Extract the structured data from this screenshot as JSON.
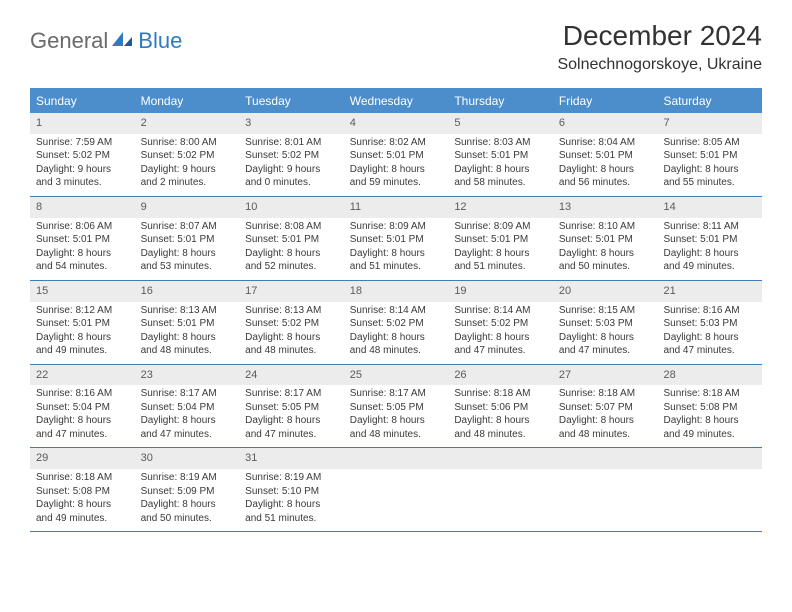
{
  "logo": {
    "text1": "General",
    "text2": "Blue"
  },
  "title": "December 2024",
  "location": "Solnechnogorskoye, Ukraine",
  "colors": {
    "header_bg": "#4b8ecb",
    "header_text": "#ffffff",
    "daynum_bg": "#ececec",
    "border": "#3f7db8",
    "logo_gray": "#6a6a6a",
    "logo_blue": "#2f7bbf"
  },
  "weekdays": [
    "Sunday",
    "Monday",
    "Tuesday",
    "Wednesday",
    "Thursday",
    "Friday",
    "Saturday"
  ],
  "weeks": [
    [
      {
        "n": "1",
        "sr": "7:59 AM",
        "ss": "5:02 PM",
        "dl": "9 hours and 3 minutes."
      },
      {
        "n": "2",
        "sr": "8:00 AM",
        "ss": "5:02 PM",
        "dl": "9 hours and 2 minutes."
      },
      {
        "n": "3",
        "sr": "8:01 AM",
        "ss": "5:02 PM",
        "dl": "9 hours and 0 minutes."
      },
      {
        "n": "4",
        "sr": "8:02 AM",
        "ss": "5:01 PM",
        "dl": "8 hours and 59 minutes."
      },
      {
        "n": "5",
        "sr": "8:03 AM",
        "ss": "5:01 PM",
        "dl": "8 hours and 58 minutes."
      },
      {
        "n": "6",
        "sr": "8:04 AM",
        "ss": "5:01 PM",
        "dl": "8 hours and 56 minutes."
      },
      {
        "n": "7",
        "sr": "8:05 AM",
        "ss": "5:01 PM",
        "dl": "8 hours and 55 minutes."
      }
    ],
    [
      {
        "n": "8",
        "sr": "8:06 AM",
        "ss": "5:01 PM",
        "dl": "8 hours and 54 minutes."
      },
      {
        "n": "9",
        "sr": "8:07 AM",
        "ss": "5:01 PM",
        "dl": "8 hours and 53 minutes."
      },
      {
        "n": "10",
        "sr": "8:08 AM",
        "ss": "5:01 PM",
        "dl": "8 hours and 52 minutes."
      },
      {
        "n": "11",
        "sr": "8:09 AM",
        "ss": "5:01 PM",
        "dl": "8 hours and 51 minutes."
      },
      {
        "n": "12",
        "sr": "8:09 AM",
        "ss": "5:01 PM",
        "dl": "8 hours and 51 minutes."
      },
      {
        "n": "13",
        "sr": "8:10 AM",
        "ss": "5:01 PM",
        "dl": "8 hours and 50 minutes."
      },
      {
        "n": "14",
        "sr": "8:11 AM",
        "ss": "5:01 PM",
        "dl": "8 hours and 49 minutes."
      }
    ],
    [
      {
        "n": "15",
        "sr": "8:12 AM",
        "ss": "5:01 PM",
        "dl": "8 hours and 49 minutes."
      },
      {
        "n": "16",
        "sr": "8:13 AM",
        "ss": "5:01 PM",
        "dl": "8 hours and 48 minutes."
      },
      {
        "n": "17",
        "sr": "8:13 AM",
        "ss": "5:02 PM",
        "dl": "8 hours and 48 minutes."
      },
      {
        "n": "18",
        "sr": "8:14 AM",
        "ss": "5:02 PM",
        "dl": "8 hours and 48 minutes."
      },
      {
        "n": "19",
        "sr": "8:14 AM",
        "ss": "5:02 PM",
        "dl": "8 hours and 47 minutes."
      },
      {
        "n": "20",
        "sr": "8:15 AM",
        "ss": "5:03 PM",
        "dl": "8 hours and 47 minutes."
      },
      {
        "n": "21",
        "sr": "8:16 AM",
        "ss": "5:03 PM",
        "dl": "8 hours and 47 minutes."
      }
    ],
    [
      {
        "n": "22",
        "sr": "8:16 AM",
        "ss": "5:04 PM",
        "dl": "8 hours and 47 minutes."
      },
      {
        "n": "23",
        "sr": "8:17 AM",
        "ss": "5:04 PM",
        "dl": "8 hours and 47 minutes."
      },
      {
        "n": "24",
        "sr": "8:17 AM",
        "ss": "5:05 PM",
        "dl": "8 hours and 47 minutes."
      },
      {
        "n": "25",
        "sr": "8:17 AM",
        "ss": "5:05 PM",
        "dl": "8 hours and 48 minutes."
      },
      {
        "n": "26",
        "sr": "8:18 AM",
        "ss": "5:06 PM",
        "dl": "8 hours and 48 minutes."
      },
      {
        "n": "27",
        "sr": "8:18 AM",
        "ss": "5:07 PM",
        "dl": "8 hours and 48 minutes."
      },
      {
        "n": "28",
        "sr": "8:18 AM",
        "ss": "5:08 PM",
        "dl": "8 hours and 49 minutes."
      }
    ],
    [
      {
        "n": "29",
        "sr": "8:18 AM",
        "ss": "5:08 PM",
        "dl": "8 hours and 49 minutes."
      },
      {
        "n": "30",
        "sr": "8:19 AM",
        "ss": "5:09 PM",
        "dl": "8 hours and 50 minutes."
      },
      {
        "n": "31",
        "sr": "8:19 AM",
        "ss": "5:10 PM",
        "dl": "8 hours and 51 minutes."
      },
      {
        "n": "",
        "sr": "",
        "ss": "",
        "dl": ""
      },
      {
        "n": "",
        "sr": "",
        "ss": "",
        "dl": ""
      },
      {
        "n": "",
        "sr": "",
        "ss": "",
        "dl": ""
      },
      {
        "n": "",
        "sr": "",
        "ss": "",
        "dl": ""
      }
    ]
  ],
  "labels": {
    "sunrise": "Sunrise:",
    "sunset": "Sunset:",
    "daylight": "Daylight:"
  }
}
